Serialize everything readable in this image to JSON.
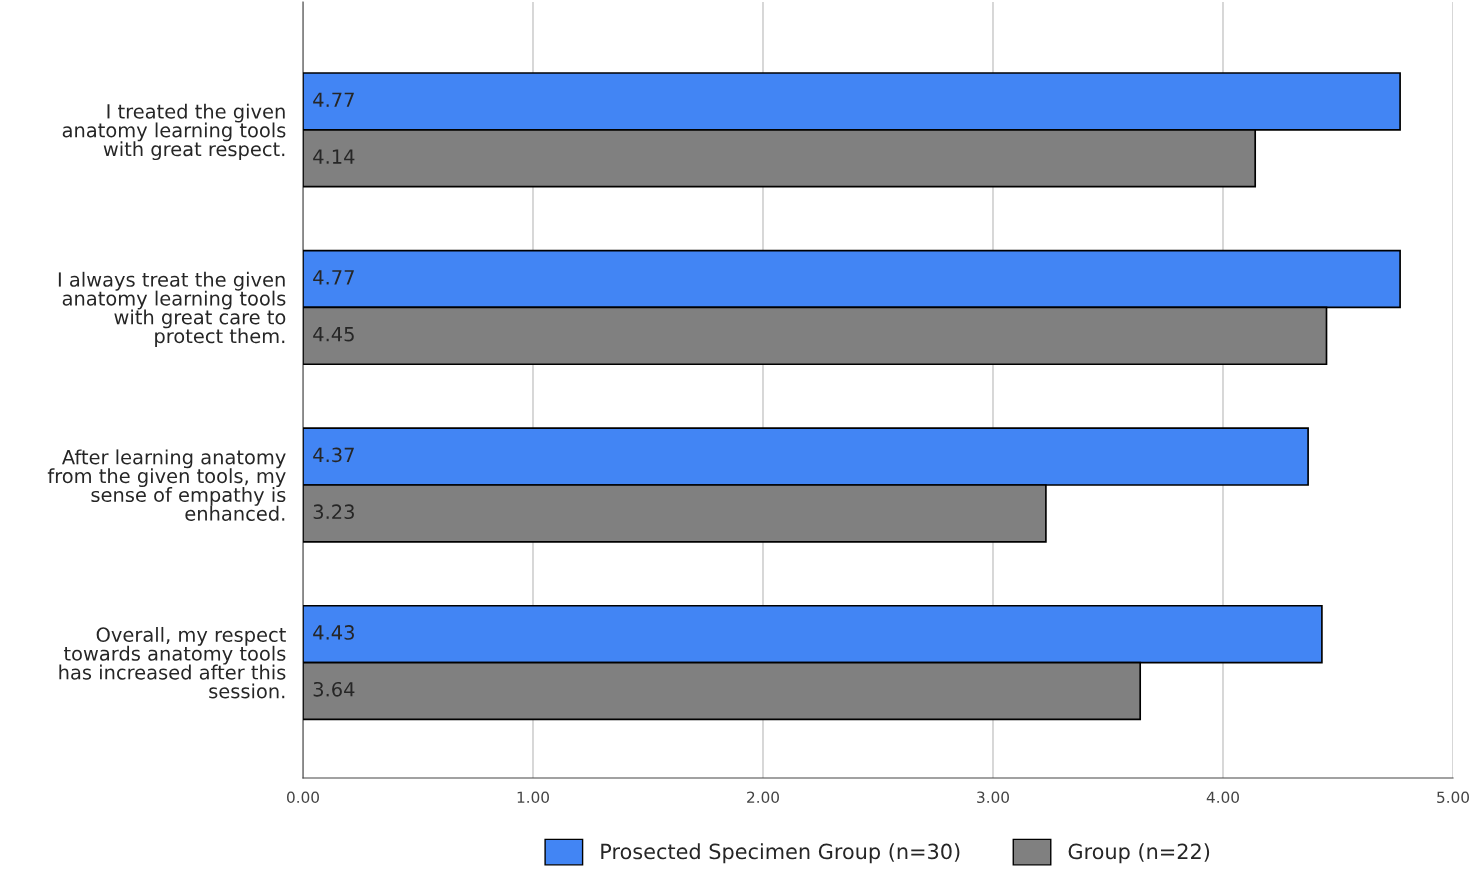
{
  "chart_data": {
    "type": "bar",
    "orientation": "horizontal",
    "categories": [
      "I treated the given anatomy learning tools with great respect.",
      "I always treat the given anatomy learning tools with great care to protect them.",
      "After learning anatomy from the given tools, my sense of empathy is enhanced.",
      "Overall, my respect towards anatomy tools has increased after this session."
    ],
    "series": [
      {
        "name": "Prosected Specimen Group (n=30)",
        "color": "#4285f4",
        "values": [
          4.77,
          4.77,
          4.37,
          4.43
        ]
      },
      {
        "name": "Group (n=22)",
        "color": "#808080",
        "values": [
          4.14,
          4.45,
          3.23,
          3.64
        ]
      }
    ],
    "xlim": [
      0,
      5
    ],
    "xticks": [
      {
        "value": 0,
        "label": "0.00"
      },
      {
        "value": 1,
        "label": "1.00"
      },
      {
        "value": 2,
        "label": "2.00"
      },
      {
        "value": 3,
        "label": "3.00"
      },
      {
        "value": 4,
        "label": "4.00"
      },
      {
        "value": 5,
        "label": "5.00"
      }
    ],
    "grid": "x",
    "legend": "bottom",
    "data_labels": true
  }
}
